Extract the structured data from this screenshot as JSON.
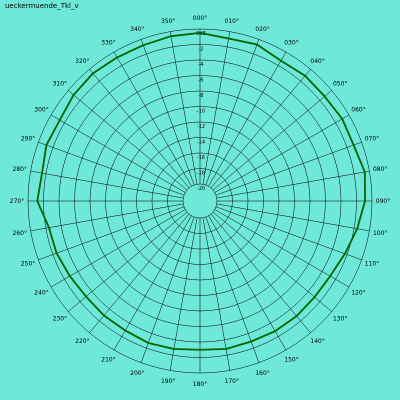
{
  "chart_data": {
    "type": "polar",
    "title": "ueckermuende_Tkl_v",
    "unit_label": "0dB",
    "radial_range_db": [
      -20,
      0
    ],
    "radial_ticks": [
      {
        "db": 0,
        "label": "0dB"
      },
      {
        "db": -2,
        "label": "-2"
      },
      {
        "db": -4,
        "label": "-4"
      },
      {
        "db": -6,
        "label": "-6"
      },
      {
        "db": -8,
        "label": "-8"
      },
      {
        "db": -10,
        "label": "-10"
      },
      {
        "db": -12,
        "label": "-12"
      },
      {
        "db": -14,
        "label": "-14"
      },
      {
        "db": -16,
        "label": "-16"
      },
      {
        "db": -18,
        "label": "-18"
      },
      {
        "db": -20,
        "label": "-20"
      }
    ],
    "angle_ticks": [
      "000",
      "010",
      "020",
      "030",
      "040",
      "050",
      "060",
      "070",
      "080",
      "090",
      "100",
      "110",
      "120",
      "130",
      "140",
      "150",
      "160",
      "170",
      "180",
      "190",
      "200",
      "210",
      "220",
      "230",
      "240",
      "250",
      "260",
      "270",
      "280",
      "290",
      "300",
      "310",
      "320",
      "330",
      "340",
      "350"
    ],
    "series": [
      {
        "color": "#006400",
        "angles_deg": [
          0,
          10,
          20,
          30,
          40,
          50,
          60,
          70,
          80,
          90,
          100,
          110,
          120,
          130,
          140,
          150,
          160,
          170,
          180,
          190,
          200,
          210,
          220,
          230,
          240,
          250,
          260,
          270,
          280,
          290,
          300,
          310,
          320,
          330,
          340,
          350
        ],
        "values_db": [
          -0.5,
          -0.9,
          -0.7,
          -1.3,
          -1.1,
          -1.2,
          -1.0,
          -1.1,
          -0.6,
          -0.9,
          -1.6,
          -2.3,
          -2.8,
          -2.9,
          -2.8,
          -2.8,
          -2.9,
          -2.8,
          -3.0,
          -2.8,
          -2.7,
          -2.9,
          -2.9,
          -3.0,
          -2.8,
          -2.5,
          -2.4,
          -1.2,
          -1.5,
          -1.1,
          -1.3,
          -0.9,
          -0.7,
          -0.8,
          -0.8,
          -0.6
        ]
      }
    ],
    "grid": true,
    "colors": {
      "background": "#6ee8d8",
      "grid": "#000000",
      "trace": "#006400"
    }
  }
}
